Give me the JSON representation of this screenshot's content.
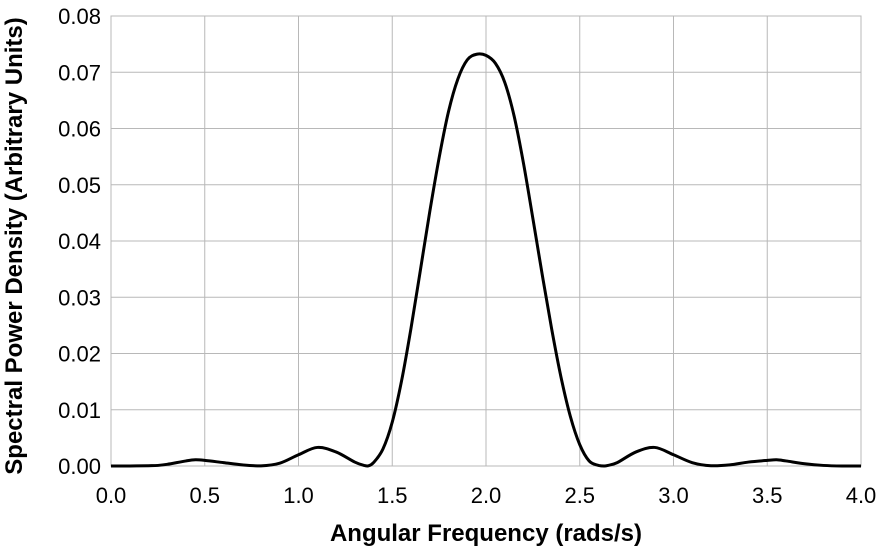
{
  "chart_data": {
    "type": "line",
    "xlabel": "Angular Frequency (rads/s)",
    "ylabel": "Spectral Power Density (Arbitrary Units)",
    "xlim": [
      0,
      4
    ],
    "ylim": [
      0,
      0.08
    ],
    "grid": true,
    "line_color": "#000000",
    "grid_color": "#b8b8b8",
    "x_ticks": [
      {
        "value": 0.0,
        "label": "0.0"
      },
      {
        "value": 0.5,
        "label": "0.5"
      },
      {
        "value": 1.0,
        "label": "1.0"
      },
      {
        "value": 1.5,
        "label": "1.5"
      },
      {
        "value": 2.0,
        "label": "2.0"
      },
      {
        "value": 2.5,
        "label": "2.5"
      },
      {
        "value": 3.0,
        "label": "3.0"
      },
      {
        "value": 3.5,
        "label": "3.5"
      },
      {
        "value": 4.0,
        "label": "4.0"
      }
    ],
    "y_ticks": [
      {
        "value": 0.0,
        "label": "0.00"
      },
      {
        "value": 0.01,
        "label": "0.01"
      },
      {
        "value": 0.02,
        "label": "0.02"
      },
      {
        "value": 0.03,
        "label": "0.03"
      },
      {
        "value": 0.04,
        "label": "0.04"
      },
      {
        "value": 0.05,
        "label": "0.05"
      },
      {
        "value": 0.06,
        "label": "0.06"
      },
      {
        "value": 0.07,
        "label": "0.07"
      },
      {
        "value": 0.08,
        "label": "0.08"
      }
    ],
    "series": [
      {
        "x": [
          0.0,
          0.1,
          0.2,
          0.25,
          0.3,
          0.4,
          0.45,
          0.5,
          0.6,
          0.7,
          0.8,
          0.9,
          1.0,
          1.1,
          1.2,
          1.3,
          1.35,
          1.37,
          1.4,
          1.45,
          1.5,
          1.55,
          1.6,
          1.65,
          1.7,
          1.75,
          1.8,
          1.85,
          1.9,
          1.95,
          2.0,
          2.05,
          2.1,
          2.15,
          2.2,
          2.25,
          2.3,
          2.35,
          2.4,
          2.45,
          2.5,
          2.55,
          2.6,
          2.63,
          2.65,
          2.7,
          2.8,
          2.9,
          3.0,
          3.1,
          3.2,
          3.3,
          3.4,
          3.5,
          3.55,
          3.6,
          3.7,
          3.8,
          3.9,
          4.0
        ],
        "y": [
          0.0,
          0.0,
          5e-05,
          0.0001,
          0.0003,
          0.0009,
          0.0011,
          0.001,
          0.0006,
          0.0002,
          2e-05,
          0.0005,
          0.002,
          0.0033,
          0.0025,
          0.0007,
          0.0001,
          0.0,
          0.0006,
          0.003,
          0.0078,
          0.0152,
          0.0245,
          0.0348,
          0.0452,
          0.0548,
          0.063,
          0.0688,
          0.0722,
          0.0732,
          0.073,
          0.0716,
          0.0682,
          0.0622,
          0.0538,
          0.044,
          0.034,
          0.0244,
          0.0158,
          0.0088,
          0.0038,
          0.0009,
          0.0001,
          0.0,
          0.0001,
          0.0006,
          0.0025,
          0.0033,
          0.002,
          0.0006,
          5e-05,
          0.0002,
          0.0007,
          0.001,
          0.0011,
          0.0009,
          0.0004,
          0.0001,
          0.0,
          0.0
        ]
      }
    ]
  }
}
